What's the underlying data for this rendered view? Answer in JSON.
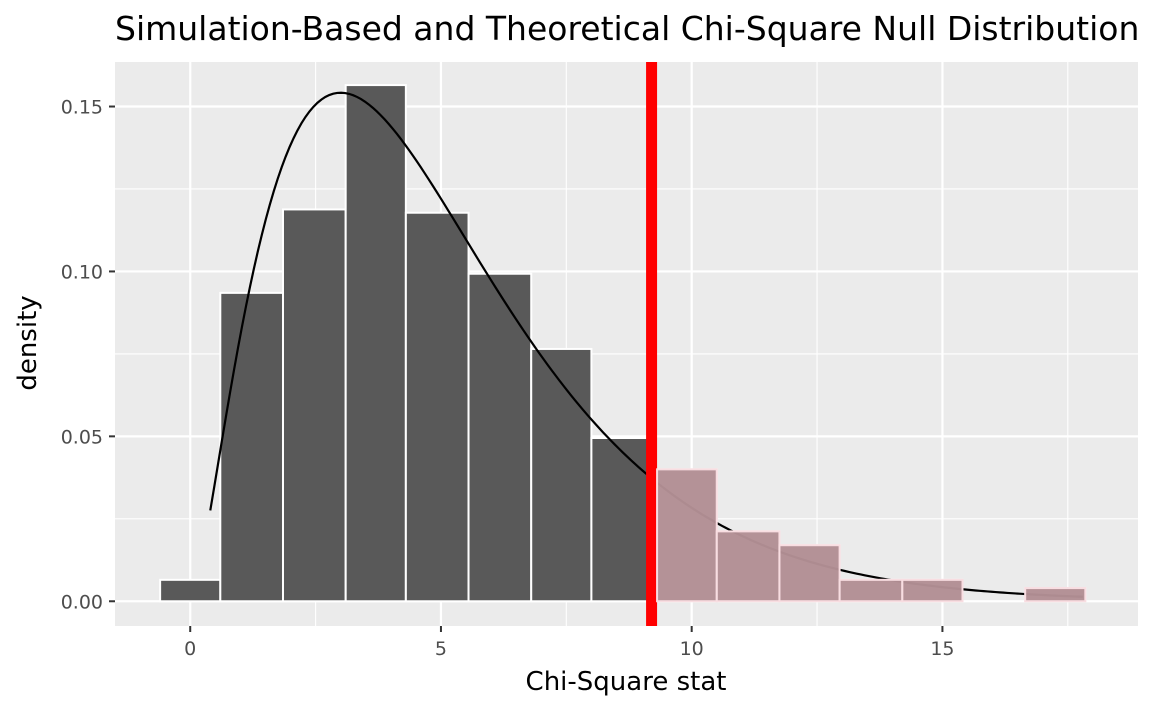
{
  "chart_data": {
    "type": "bar",
    "title": "Simulation-Based and Theoretical Chi-Square Null Distribution",
    "xlabel": "Chi-Square stat",
    "ylabel": "density",
    "xlim": [
      -1.5,
      18.9
    ],
    "ylim": [
      -0.0075,
      0.1635
    ],
    "x_ticks": [
      0,
      5,
      10,
      15
    ],
    "x_tick_labels": [
      "0",
      "5",
      "10",
      "15"
    ],
    "y_ticks": [
      0,
      0.05,
      0.1,
      0.15
    ],
    "y_tick_labels": [
      "0.00",
      "0.05",
      "0.10",
      "0.15"
    ],
    "grid": true,
    "legend": "none",
    "observed_stat": 9.2,
    "bins": [
      {
        "x0": -0.6,
        "x1": 0.6,
        "density": 0.0065
      },
      {
        "x0": 0.6,
        "x1": 1.85,
        "density": 0.0935
      },
      {
        "x0": 1.85,
        "x1": 3.1,
        "density": 0.1188
      },
      {
        "x0": 3.1,
        "x1": 4.3,
        "density": 0.1565
      },
      {
        "x0": 4.3,
        "x1": 5.55,
        "density": 0.1178
      },
      {
        "x0": 5.55,
        "x1": 6.8,
        "density": 0.0993
      },
      {
        "x0": 6.8,
        "x1": 8.0,
        "density": 0.0765
      },
      {
        "x0": 8.0,
        "x1": 9.2,
        "density": 0.0495
      },
      {
        "x0": 9.2,
        "x1": 10.5,
        "density": 0.04
      },
      {
        "x0": 10.5,
        "x1": 11.75,
        "density": 0.0212
      },
      {
        "x0": 11.75,
        "x1": 12.95,
        "density": 0.017
      },
      {
        "x0": 12.95,
        "x1": 14.2,
        "density": 0.0065
      },
      {
        "x0": 14.2,
        "x1": 15.4,
        "density": 0.0065
      },
      {
        "x0": 16.65,
        "x1": 17.85,
        "density": 0.004
      }
    ],
    "theoretical_curve": {
      "distribution": "chi-square",
      "df": 5,
      "x_range": [
        0.4,
        17.8
      ]
    },
    "colors": {
      "panel_background": "#ebebeb",
      "grid": "#ffffff",
      "bar_fill": "#595959",
      "bar_stroke": "#ffffff",
      "shaded_fill": "#bc979c",
      "shaded_stroke": "#f8dde1",
      "observed_line": "#ff0000",
      "curve": "#000000"
    }
  }
}
